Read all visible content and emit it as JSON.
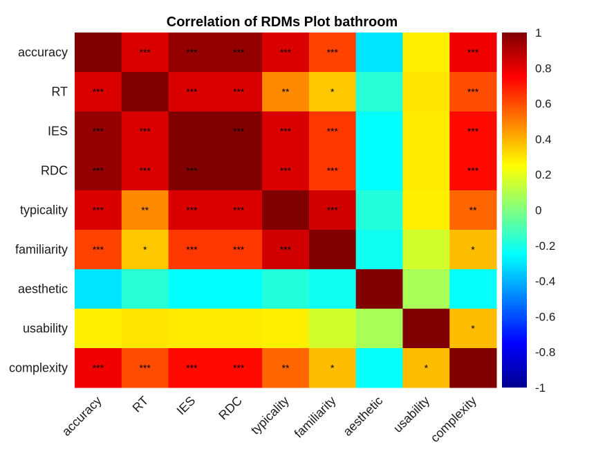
{
  "chart_data": {
    "type": "heatmap",
    "title": "Correlation of RDMs Plot bathroom",
    "colormap": "jet",
    "clim": [
      -1,
      1
    ],
    "colorbar_ticks": [
      "1",
      "0.8",
      "0.6",
      "0.4",
      "0.2",
      "0",
      "-0.2",
      "-0.4",
      "-0.6",
      "-0.8",
      "-1"
    ],
    "colorbar_tick_values": [
      1,
      0.8,
      0.6,
      0.4,
      0.2,
      0,
      -0.2,
      -0.4,
      -0.6,
      -0.8,
      -1
    ],
    "row_labels": [
      "accuracy",
      "RT",
      "IES",
      "RDC",
      "typicality",
      "familiarity",
      "aesthetic",
      "usability",
      "complexity"
    ],
    "col_labels": [
      "accuracy",
      "RT",
      "IES",
      "RDC",
      "typicality",
      "familiarity",
      "aesthetic",
      "usability",
      "complexity"
    ],
    "values": [
      [
        1.0,
        0.82,
        0.96,
        0.96,
        0.82,
        0.62,
        -0.3,
        0.28,
        0.78
      ],
      [
        0.82,
        1.0,
        0.82,
        0.82,
        0.48,
        0.36,
        -0.17,
        0.3,
        0.6
      ],
      [
        0.96,
        0.82,
        1.0,
        1.0,
        0.82,
        0.64,
        -0.25,
        0.29,
        0.73
      ],
      [
        0.96,
        0.82,
        1.0,
        1.0,
        0.82,
        0.64,
        -0.25,
        0.29,
        0.73
      ],
      [
        0.82,
        0.48,
        0.82,
        0.82,
        1.0,
        0.84,
        -0.18,
        0.28,
        0.55
      ],
      [
        0.62,
        0.36,
        0.64,
        0.64,
        0.84,
        1.0,
        -0.22,
        0.16,
        0.38
      ],
      [
        -0.3,
        -0.17,
        -0.25,
        -0.25,
        -0.18,
        -0.22,
        1.0,
        0.08,
        -0.24
      ],
      [
        0.28,
        0.3,
        0.29,
        0.29,
        0.28,
        0.16,
        0.08,
        1.0,
        0.38
      ],
      [
        0.78,
        0.6,
        0.73,
        0.73,
        0.55,
        0.38,
        -0.24,
        0.38,
        1.0
      ]
    ],
    "significance": [
      [
        "",
        "***",
        "***",
        "***",
        "***",
        "***",
        "",
        "",
        "***"
      ],
      [
        "***",
        "",
        "***",
        "***",
        "**",
        "*",
        "",
        "",
        "***"
      ],
      [
        "***",
        "***",
        "",
        "***",
        "***",
        "***",
        "",
        "",
        "***"
      ],
      [
        "***",
        "***",
        "***",
        "",
        "***",
        "***",
        "",
        "",
        "***"
      ],
      [
        "***",
        "**",
        "***",
        "***",
        "",
        "***",
        "",
        "",
        "**"
      ],
      [
        "***",
        "*",
        "***",
        "***",
        "***",
        "",
        "",
        "",
        "*"
      ],
      [
        "",
        "",
        "",
        "",
        "",
        "",
        "",
        "",
        ""
      ],
      [
        "",
        "",
        "",
        "",
        "",
        "",
        "",
        "",
        "*"
      ],
      [
        "***",
        "***",
        "***",
        "***",
        "**",
        "*",
        "",
        "*",
        ""
      ]
    ]
  }
}
